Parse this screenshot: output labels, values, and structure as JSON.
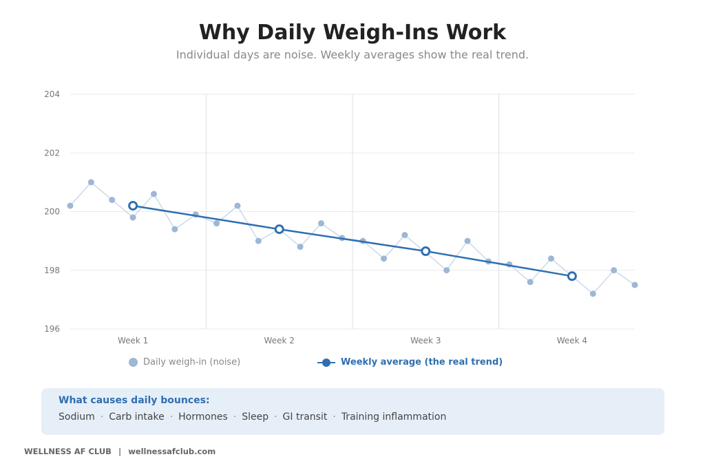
{
  "header": {
    "title": "Why Daily Weigh-Ins Work",
    "subtitle": "Individual days are noise. Weekly averages show the real trend."
  },
  "colors": {
    "daily_point": "#9db7d5",
    "daily_line": "#c9d9ea",
    "weekly": "#2f6fb0",
    "grid": "#e6e9ee",
    "week_divider": "#dcdfe5",
    "axis_text": "#777777"
  },
  "chart_data": {
    "type": "line",
    "title": "Why Daily Weigh-Ins Work",
    "subtitle": "Individual days are noise. Weekly averages show the real trend.",
    "xlabel": "",
    "ylabel": "",
    "ylim": [
      196,
      204
    ],
    "yticks": [
      "196",
      "198",
      "200",
      "202",
      "204"
    ],
    "xlim": [
      1,
      28
    ],
    "xtick_labels": [
      "Week 1",
      "Week 2",
      "Week 3",
      "Week 4"
    ],
    "xtick_days": [
      4,
      11,
      18,
      25
    ],
    "week_dividers_after_day": [
      7.5,
      14.5,
      21.5
    ],
    "grid": true,
    "legend_position": "bottom",
    "series": [
      {
        "name": "Daily weigh-in (noise)",
        "x": [
          1,
          2,
          3,
          4,
          5,
          6,
          7,
          8,
          9,
          10,
          11,
          12,
          13,
          14,
          15,
          16,
          17,
          18,
          19,
          20,
          21,
          22,
          23,
          24,
          25,
          26,
          27,
          28
        ],
        "values": [
          200.2,
          201.0,
          200.4,
          199.8,
          200.6,
          199.4,
          199.9,
          199.6,
          200.2,
          199.0,
          199.4,
          198.8,
          199.6,
          199.1,
          199.0,
          198.4,
          199.2,
          198.6,
          198.0,
          199.0,
          198.3,
          198.2,
          197.6,
          198.4,
          197.8,
          197.2,
          198.0,
          197.5
        ]
      },
      {
        "name": "Weekly average (the real trend)",
        "x": [
          4,
          11,
          18,
          25
        ],
        "values": [
          200.2,
          199.4,
          198.65,
          197.8
        ]
      }
    ]
  },
  "info": {
    "title": "What causes daily bounces:",
    "separator": "·",
    "causes": [
      "Sodium",
      "Carb intake",
      "Hormones",
      "Sleep",
      "GI transit",
      "Training inflammation"
    ]
  },
  "footer": {
    "brand": "WELLNESS AF CLUB",
    "divider": "|",
    "site": "wellnessafclub.com"
  }
}
